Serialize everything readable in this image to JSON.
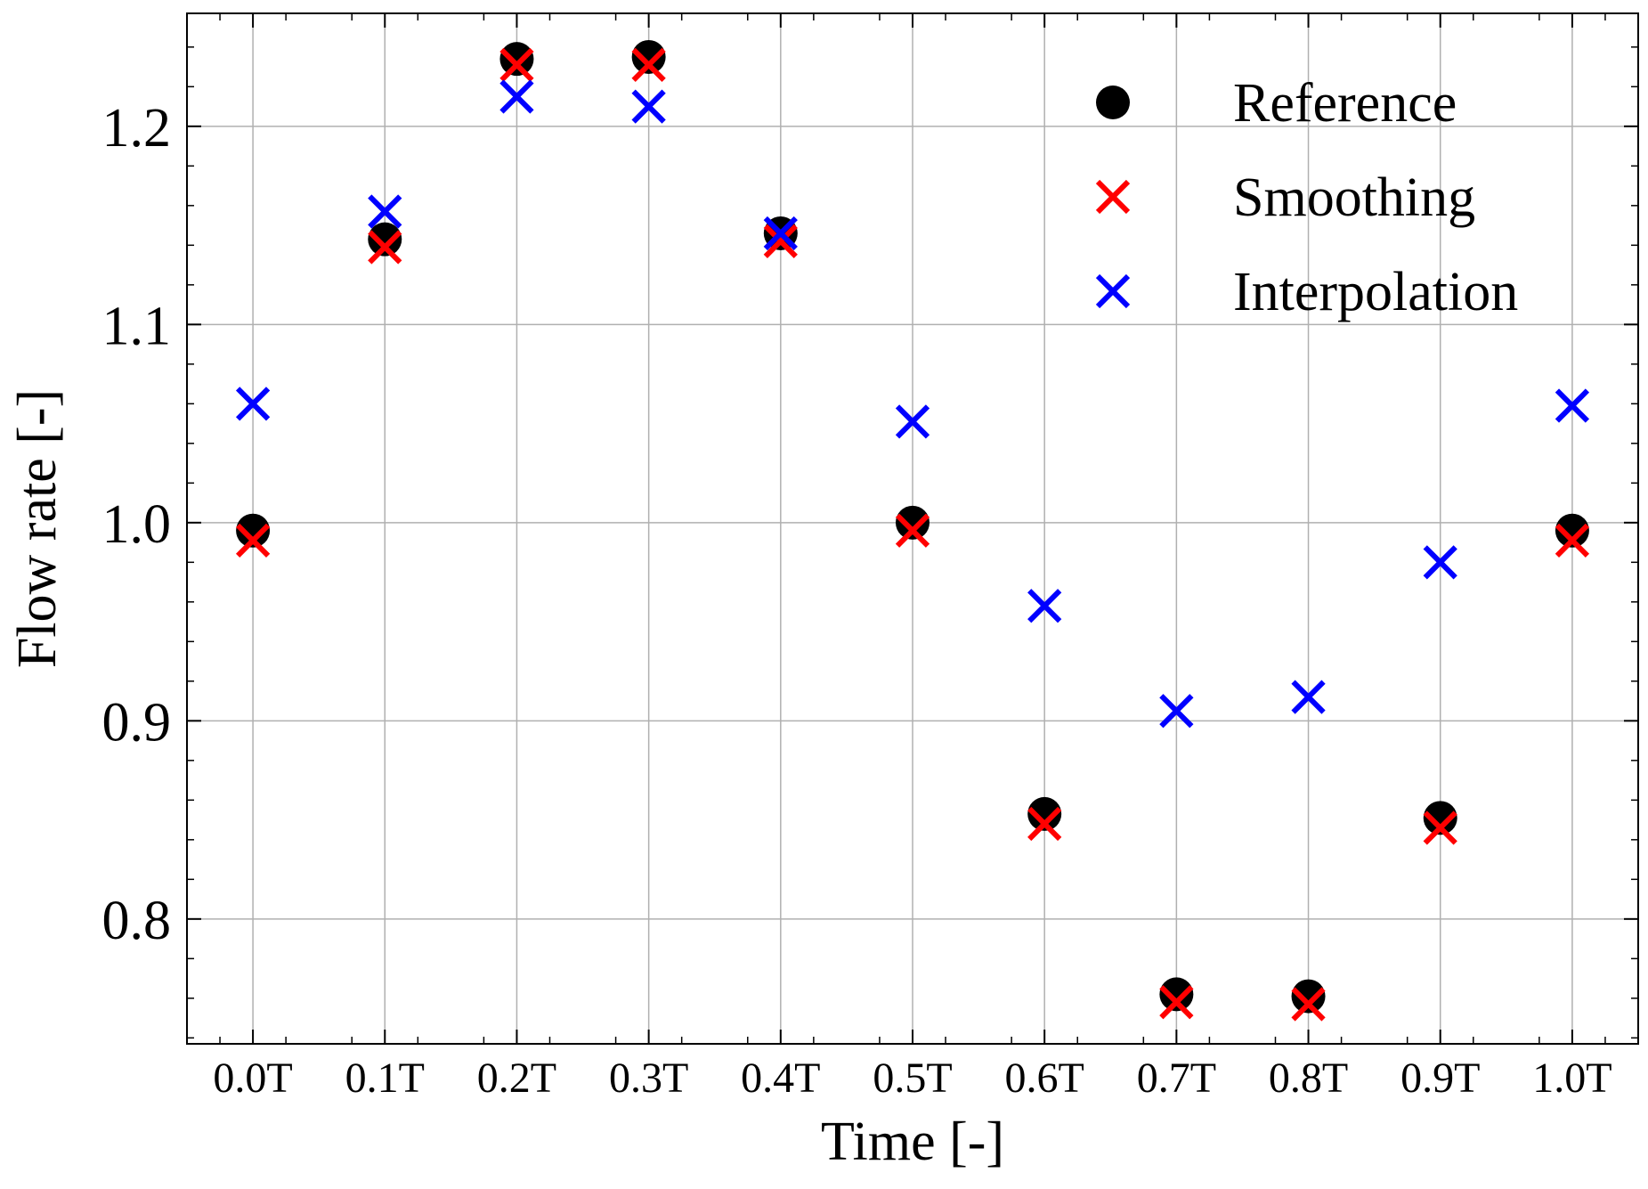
{
  "chart_data": {
    "type": "scatter",
    "xlabel": "Time [-]",
    "ylabel": "Flow rate [-]",
    "title": "",
    "x": [
      0.0,
      0.1,
      0.2,
      0.3,
      0.4,
      0.5,
      0.6,
      0.7,
      0.8,
      0.9,
      1.0
    ],
    "x_tick_labels": [
      "0.0T",
      "0.1T",
      "0.2T",
      "0.3T",
      "0.4T",
      "0.5T",
      "0.6T",
      "0.7T",
      "0.8T",
      "0.9T",
      "1.0T"
    ],
    "y_ticks": [
      0.8,
      0.9,
      1.0,
      1.1,
      1.2
    ],
    "y_tick_labels": [
      "0.8",
      "0.9",
      "1.0",
      "1.1",
      "1.2"
    ],
    "xlim": [
      -0.05,
      1.05
    ],
    "ylim": [
      0.737,
      1.257
    ],
    "grid": true,
    "legend_position": "top-right",
    "series": [
      {
        "name": "Reference",
        "marker": "circle",
        "color": "#000000",
        "values": [
          0.996,
          1.143,
          1.234,
          1.235,
          1.146,
          1.0,
          0.853,
          0.762,
          0.761,
          0.851,
          0.996
        ]
      },
      {
        "name": "Smoothing",
        "marker": "x",
        "color": "#ff0000",
        "values": [
          0.991,
          1.139,
          1.231,
          1.231,
          1.142,
          0.996,
          0.848,
          0.758,
          0.757,
          0.846,
          0.991
        ]
      },
      {
        "name": "Interpolation",
        "marker": "x",
        "color": "#0000ff",
        "values": [
          1.06,
          1.157,
          1.215,
          1.21,
          1.146,
          1.051,
          0.958,
          0.905,
          0.912,
          0.98,
          1.059
        ]
      }
    ]
  }
}
